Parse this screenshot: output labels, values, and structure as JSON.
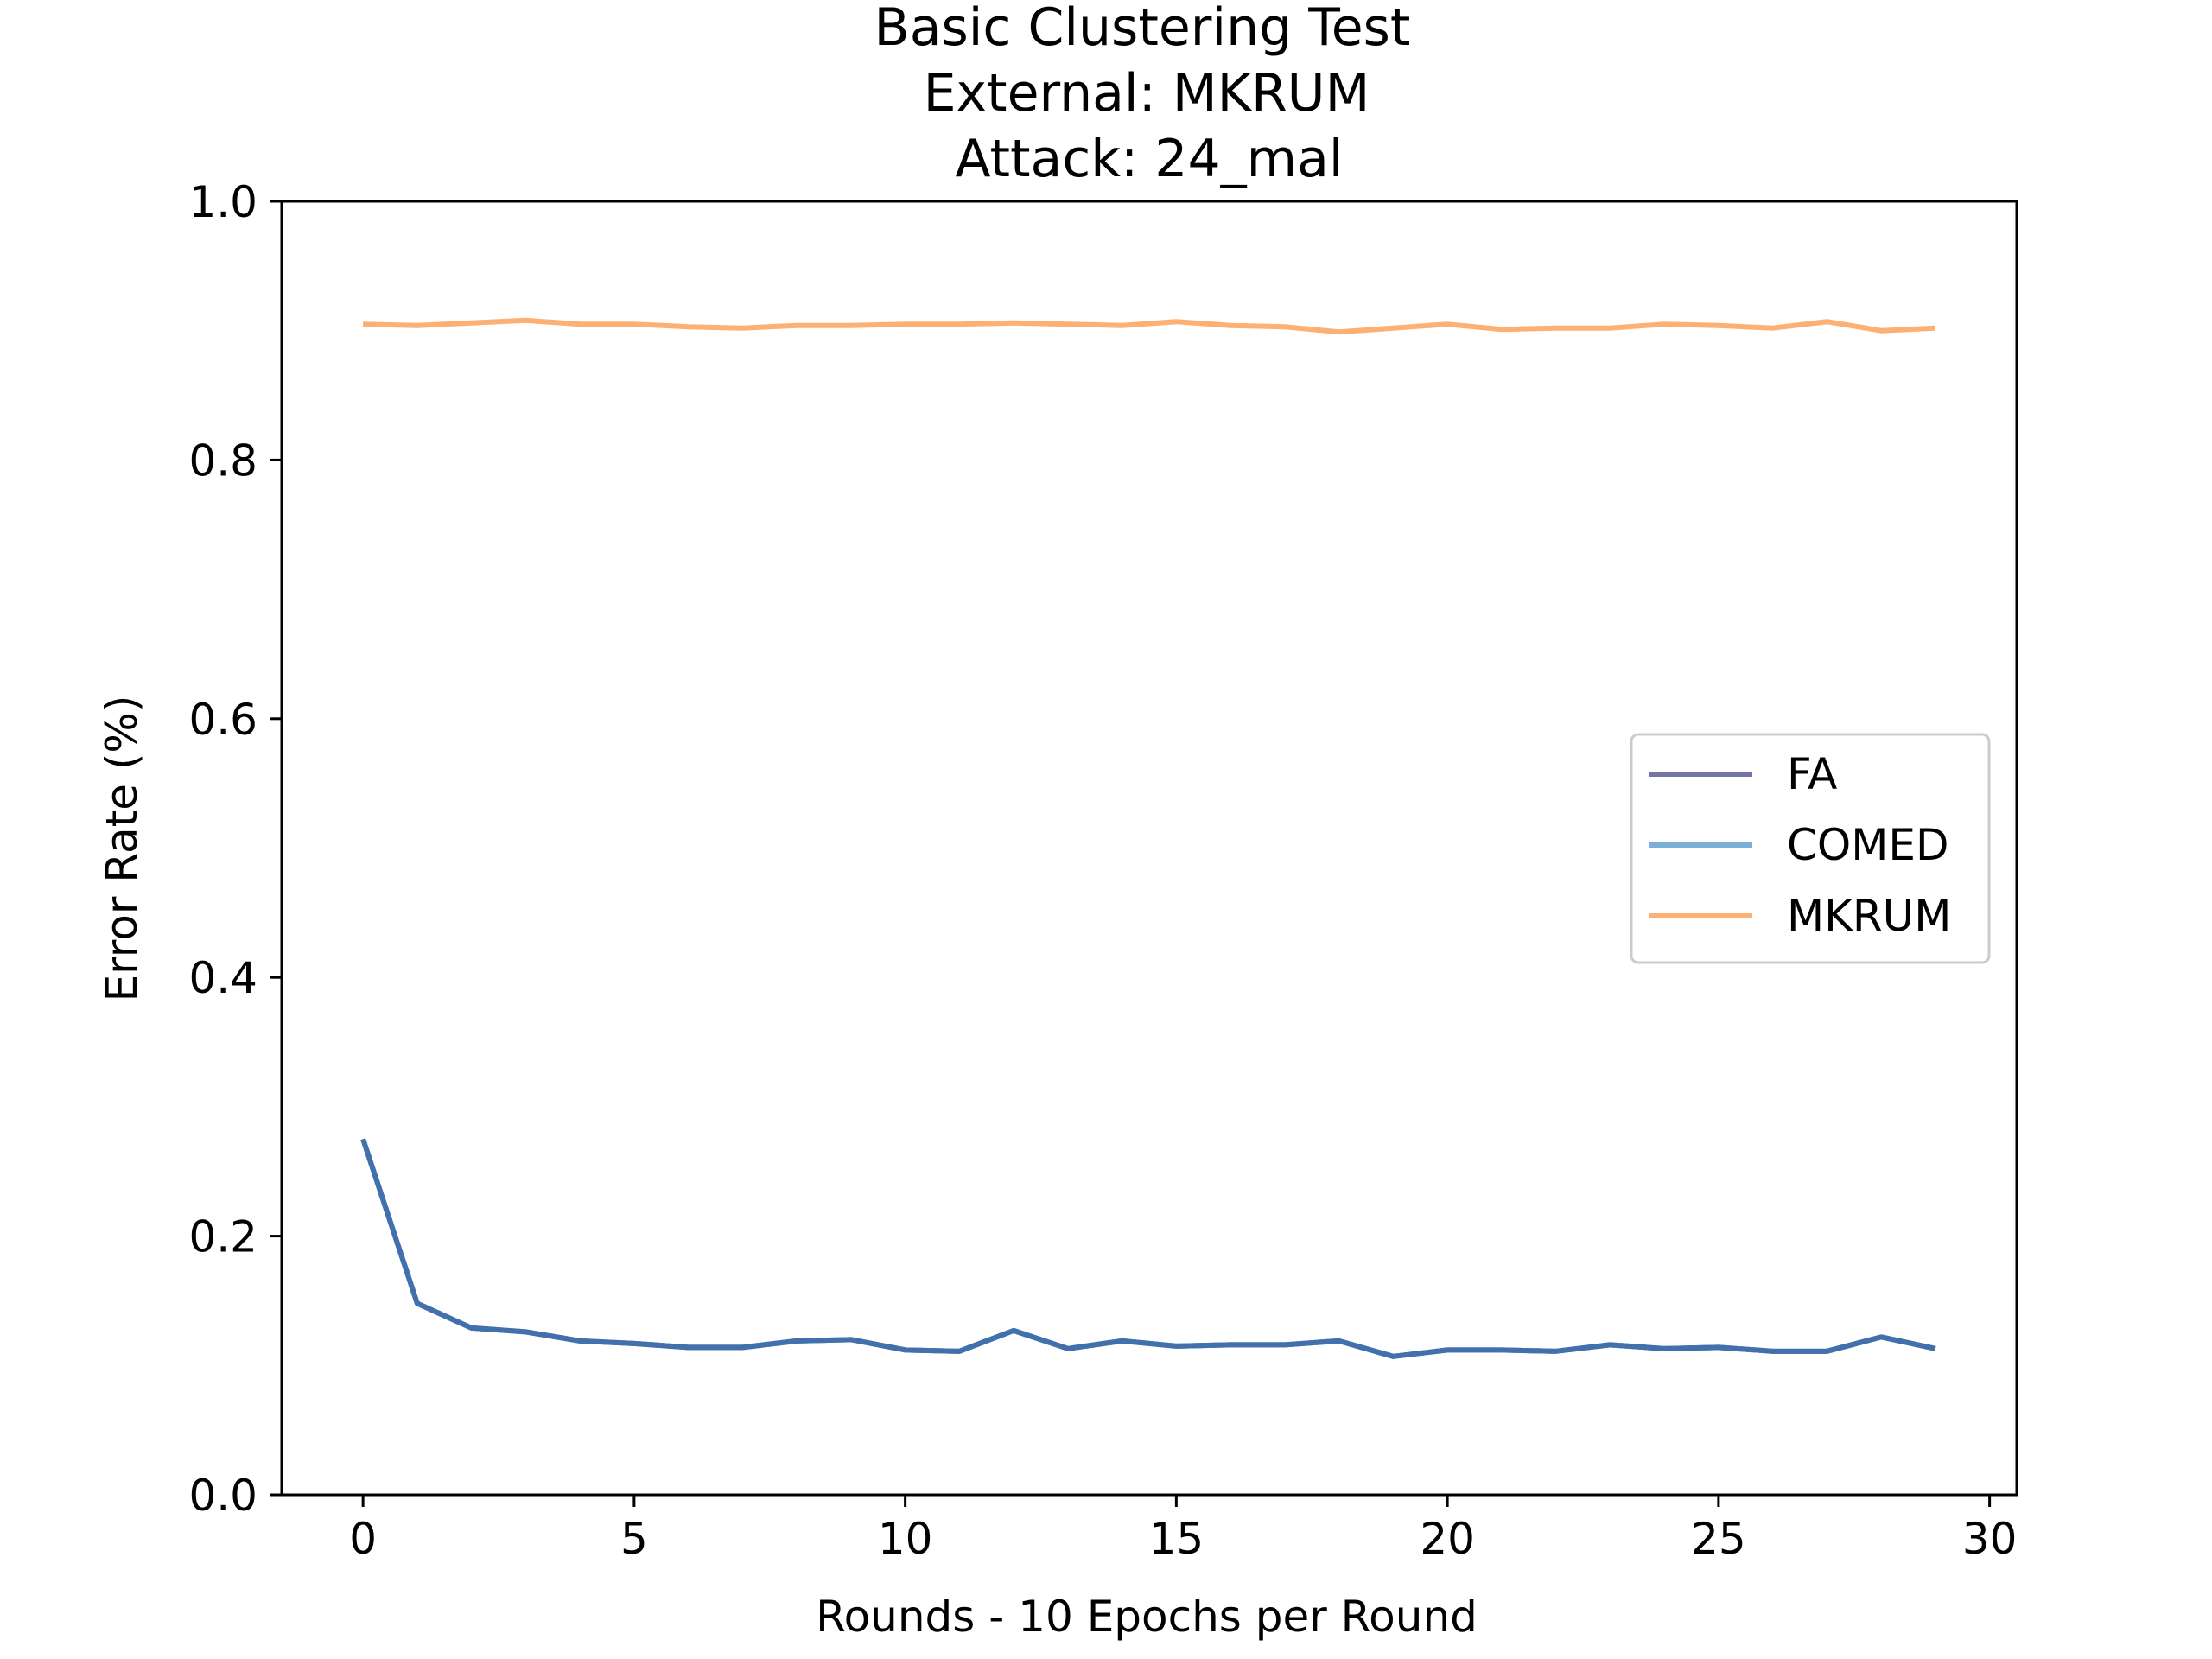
{
  "chart_data": {
    "type": "line",
    "title_lines": [
      "Basic Clustering Test",
      "External: MKRUM",
      "Attack: 24_mal"
    ],
    "xlabel": "Rounds - 10 Epochs per Round",
    "ylabel": "Error Rate (%)",
    "xlim": [
      -1.5,
      30.5
    ],
    "ylim": [
      0.0,
      1.0
    ],
    "xticks": [
      0,
      5,
      10,
      15,
      20,
      25,
      30
    ],
    "xtick_labels": [
      "0",
      "5",
      "10",
      "15",
      "20",
      "25",
      "30"
    ],
    "yticks": [
      0.0,
      0.2,
      0.4,
      0.6,
      0.8,
      1.0
    ],
    "ytick_labels": [
      "0.0",
      "0.2",
      "0.4",
      "0.6",
      "0.8",
      "1.0"
    ],
    "grid": false,
    "legend_position": "center-right",
    "x": [
      0,
      1,
      2,
      3,
      4,
      5,
      6,
      7,
      8,
      9,
      10,
      11,
      12,
      13,
      14,
      15,
      16,
      17,
      18,
      19,
      20,
      21,
      22,
      23,
      24,
      25,
      26,
      27,
      28,
      29
    ],
    "series": [
      {
        "name": "FA",
        "color": "#7475a6",
        "values": [
          0.275,
          0.148,
          0.129,
          0.126,
          0.119,
          0.117,
          0.114,
          0.114,
          0.119,
          0.12,
          0.112,
          0.111,
          0.127,
          0.113,
          0.119,
          0.115,
          0.116,
          0.116,
          0.119,
          0.107,
          0.112,
          0.112,
          0.111,
          0.116,
          0.113,
          0.114,
          0.111,
          0.111,
          0.122,
          0.113
        ]
      },
      {
        "name": "COMED",
        "color": "#7ab0d6",
        "values": [
          0.275,
          0.148,
          0.129,
          0.126,
          0.119,
          0.117,
          0.114,
          0.114,
          0.119,
          0.12,
          0.112,
          0.111,
          0.127,
          0.113,
          0.119,
          0.115,
          0.116,
          0.116,
          0.119,
          0.107,
          0.112,
          0.112,
          0.111,
          0.116,
          0.113,
          0.114,
          0.111,
          0.111,
          0.122,
          0.113
        ]
      },
      {
        "name": "MKRUM",
        "color": "#fdb073",
        "values": [
          0.905,
          0.904,
          0.906,
          0.908,
          0.905,
          0.905,
          0.903,
          0.902,
          0.904,
          0.904,
          0.905,
          0.905,
          0.906,
          0.905,
          0.904,
          0.907,
          0.904,
          0.903,
          0.899,
          0.902,
          0.905,
          0.901,
          0.902,
          0.902,
          0.905,
          0.904,
          0.902,
          0.907,
          0.9,
          0.902
        ]
      }
    ],
    "overlay_line_color": "#4170ac"
  }
}
